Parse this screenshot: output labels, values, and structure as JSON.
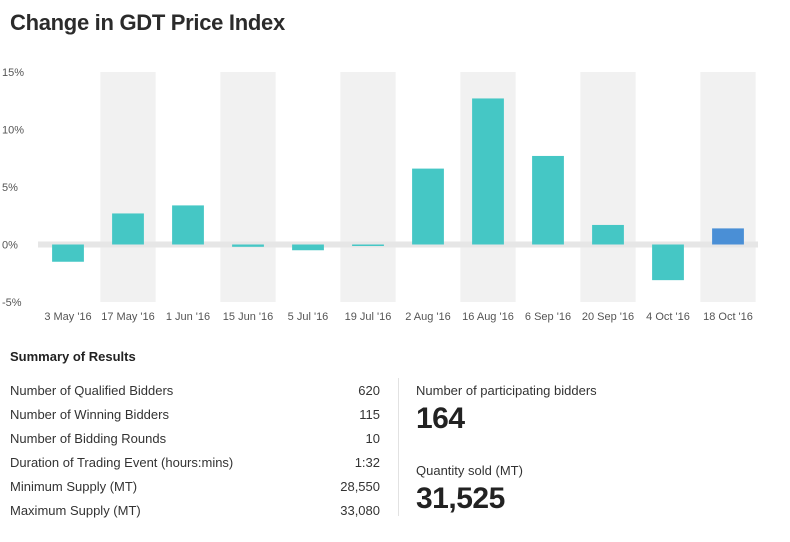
{
  "title": "Change in GDT Price Index",
  "chart_data": {
    "type": "bar",
    "title": "Change in GDT Price Index",
    "xlabel": "",
    "ylabel": "",
    "ylim": [
      -5,
      15
    ],
    "yticks": [
      "15%",
      "10%",
      "5%",
      "0%",
      "-5%"
    ],
    "ytick_values": [
      15,
      10,
      5,
      0,
      -5
    ],
    "categories": [
      "3 May '16",
      "17 May '16",
      "1 Jun '16",
      "15 Jun '16",
      "5 Jul '16",
      "19 Jul '16",
      "2 Aug '16",
      "16 Aug '16",
      "6 Sep '16",
      "20 Sep '16",
      "4 Oct '16",
      "18 Oct '16"
    ],
    "values": [
      -1.5,
      2.7,
      3.4,
      -0.2,
      -0.5,
      -0.1,
      6.6,
      12.7,
      7.7,
      1.7,
      -3.1,
      1.4
    ],
    "colors": [
      "#45c7c5",
      "#45c7c5",
      "#45c7c5",
      "#45c7c5",
      "#45c7c5",
      "#45c7c5",
      "#45c7c5",
      "#45c7c5",
      "#45c7c5",
      "#45c7c5",
      "#45c7c5",
      "#4a8fd6"
    ],
    "grid": true
  },
  "summary": {
    "title": "Summary of Results",
    "rows": [
      {
        "label": "Number of Qualified Bidders",
        "value": "620"
      },
      {
        "label": "Number of Winning Bidders",
        "value": "115"
      },
      {
        "label": "Number of Bidding Rounds",
        "value": "10"
      },
      {
        "label": "Duration of Trading Event (hours:mins)",
        "value": "1:32"
      },
      {
        "label": "Minimum Supply (MT)",
        "value": "28,550"
      },
      {
        "label": "Maximum Supply (MT)",
        "value": "33,080"
      }
    ]
  },
  "stats": {
    "participating_label": "Number of participating bidders",
    "participating_value": "164",
    "quantity_label": "Quantity sold (MT)",
    "quantity_value": "31,525"
  }
}
